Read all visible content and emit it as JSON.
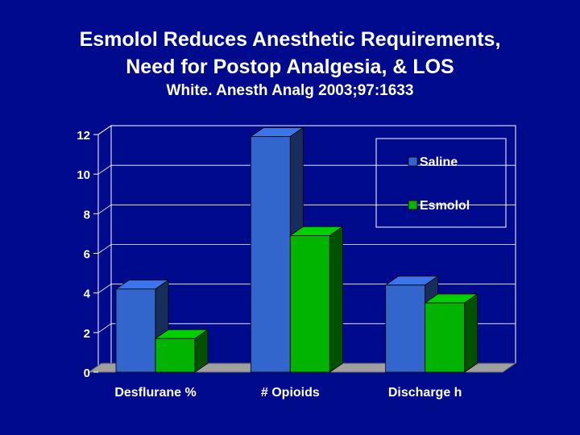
{
  "slide": {
    "title_line1": "Esmolol Reduces Anesthetic Requirements,",
    "title_line2": "Need for Postop Analgesia, & LOS",
    "subtitle": "White. Anesth Analg 2003;97:1633"
  },
  "colors": {
    "background": "#000a8c",
    "saline": "#3366cc",
    "esmolol": "#00b400",
    "floor": "#a0a0a0"
  },
  "chart_data": {
    "type": "bar",
    "title": "",
    "xlabel": "",
    "ylabel": "",
    "categories": [
      "Desflurane %",
      "# Opioids",
      "Discharge h"
    ],
    "series": [
      {
        "name": "Saline",
        "values": [
          4.2,
          11.9,
          4.4
        ]
      },
      {
        "name": "Esmolol",
        "values": [
          1.7,
          6.9,
          3.5
        ]
      }
    ],
    "ylim": [
      0,
      12
    ],
    "yticks": [
      "0",
      "2",
      "4",
      "6",
      "8",
      "10",
      "12"
    ],
    "grid": true,
    "legend_position": "top-right",
    "three_d": true
  }
}
